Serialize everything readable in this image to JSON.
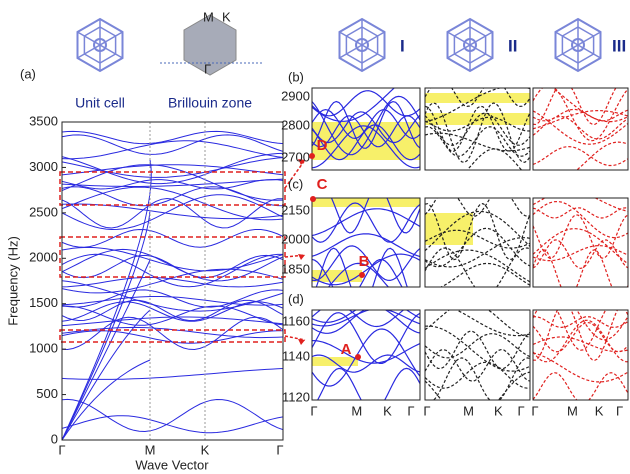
{
  "panel_a": {
    "label": "(a)",
    "icon_labels": [
      "Unit cell",
      "Brillouin zone"
    ],
    "bz_points": [
      "M",
      "K",
      "Γ"
    ],
    "y_axis_title": "Frequency (Hz)",
    "x_axis_title": "Wave Vector",
    "yticks": [
      "0",
      "500",
      "1000",
      "1500",
      "2000",
      "2500",
      "3000",
      "3500"
    ],
    "xticks": [
      "Γ",
      "M",
      "K",
      "Γ"
    ]
  },
  "columns": [
    "I",
    "II",
    "III"
  ],
  "rows": [
    {
      "label": "(b)",
      "yticks": [
        "2900",
        "2800",
        "2700"
      ],
      "points": [
        "D"
      ]
    },
    {
      "label": "(c)",
      "yticks": [
        "2150",
        "2000",
        "1850"
      ],
      "points": [
        "C",
        "B"
      ]
    },
    {
      "label": "(d)",
      "yticks": [
        "1160",
        "1140",
        "1120"
      ],
      "points": [
        "A"
      ]
    }
  ],
  "xticks": [
    "Γ",
    "M",
    "K",
    "Γ"
  ]
}
